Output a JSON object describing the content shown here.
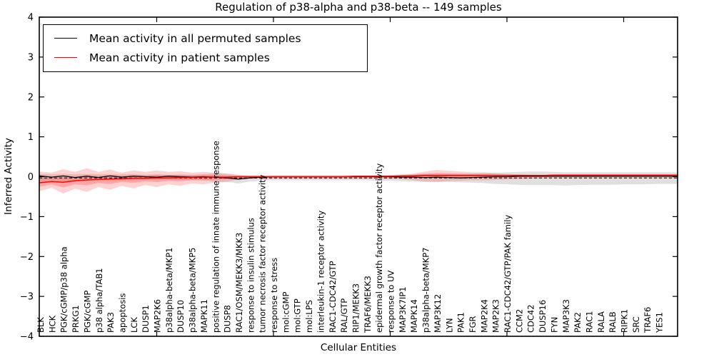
{
  "figure": {
    "title": "Regulation of p38-alpha and p38-beta -- 149 samples",
    "xlabel": "Cellular Entities",
    "ylabel": "Inferred Activity"
  },
  "legend": {
    "items": [
      {
        "label": "Mean activity in all permuted samples",
        "color": "#000000"
      },
      {
        "label": "Mean activity in patient samples",
        "color": "#ff0000"
      }
    ]
  },
  "chart_data": {
    "type": "line",
    "title": "Regulation of p38-alpha and p38-beta -- 149 samples",
    "xlabel": "Cellular Entities",
    "ylabel": "Inferred Activity",
    "ylim": [
      -4,
      4
    ],
    "yticks": [
      4,
      3,
      2,
      1,
      0,
      -1,
      -2,
      -3,
      -4
    ],
    "x_major_tick_indices": [
      10,
      20,
      30,
      40,
      50
    ],
    "grid": false,
    "legend_position": "upper left",
    "colors": {
      "permuted_line": "#000000",
      "permuted_band": "#999999",
      "patient_line": "#ff0000",
      "patient_band": "#ff3333",
      "baseline": "#000000"
    },
    "baseline": {
      "style": "dashed",
      "value": -0.03
    },
    "categories": [
      "BLK",
      "HCK",
      "PGK/cGMP/p38 alpha",
      "PRKG1",
      "PGK/cGMP",
      "p38 alpha/TAB1",
      "PAK3",
      "apoptosis",
      "LCK",
      "DUSP1",
      "MAP2K6",
      "p38alpha-beta/MKP1",
      "DUSP10",
      "p38alpha-beta/MKP5",
      "MAPK11",
      "positive regulation of innate immune response",
      "DUSP8",
      "RAC1/OSM/MEKK3/MKK3",
      "response to insulin stimulus",
      "tumor necrosis factor receptor activity",
      "response to stress",
      "mol:cGMP",
      "mol:GTP",
      "mol:LPS",
      "interleukin-1 receptor activity",
      "RAC1-CDC42/GTP",
      "RAL/GTP",
      "RIP1/MEKK3",
      "TRAF6/MEKK3",
      "epidermal growth factor receptor activity",
      "response to UV",
      "MAP3K7IP1",
      "MAPK14",
      "p38alpha-beta/MKP7",
      "MAP3K12",
      "LYN",
      "PAK1",
      "FGR",
      "MAP2K4",
      "MAP2K3",
      "RAC1-CDC42/GTP/PAK family",
      "CCM2",
      "CDC42",
      "DUSP16",
      "FYN",
      "MAP3K3",
      "PAK2",
      "RAC1",
      "RALA",
      "RALB",
      "RIPK1",
      "SRC",
      "TRAF6",
      "YES1"
    ],
    "series": [
      {
        "name": "Mean activity in all permuted samples",
        "values": [
          0.02,
          -0.01,
          0.02,
          -0.02,
          0.01,
          -0.02,
          0.02,
          -0.01,
          0.01,
          0.0,
          -0.01,
          0.01,
          0.0,
          -0.01,
          0.0,
          -0.01,
          -0.03,
          -0.06,
          -0.03,
          -0.01,
          0.0,
          0.0,
          0.0,
          0.0,
          0.0,
          0.0,
          0.0,
          0.0,
          0.0,
          0.0,
          0.0,
          -0.01,
          -0.01,
          -0.02,
          -0.01,
          -0.02,
          -0.03,
          -0.02,
          -0.01,
          0.0,
          0.0,
          0.01,
          0.01,
          0.01,
          0.01,
          0.01,
          0.01,
          0.01,
          0.01,
          0.01,
          0.01,
          0.01,
          0.01,
          0.01
        ],
        "band_upper": [
          0.07,
          0.06,
          0.07,
          0.06,
          0.07,
          0.06,
          0.06,
          0.06,
          0.06,
          0.05,
          0.05,
          0.05,
          0.05,
          0.05,
          0.06,
          0.09,
          0.07,
          0.05,
          0.04,
          0.04,
          0.04,
          0.04,
          0.04,
          0.04,
          0.04,
          0.04,
          0.04,
          0.04,
          0.04,
          0.05,
          0.05,
          0.06,
          0.06,
          0.06,
          0.06,
          0.07,
          0.07,
          0.08,
          0.09,
          0.1,
          0.11,
          0.12,
          0.13,
          0.13,
          0.12,
          0.11,
          0.11,
          0.11,
          0.11,
          0.11,
          0.11,
          0.11,
          0.11,
          0.11
        ],
        "band_lower": [
          -0.11,
          -0.09,
          -0.11,
          -0.09,
          -0.1,
          -0.09,
          -0.09,
          -0.09,
          -0.09,
          -0.08,
          -0.08,
          -0.08,
          -0.08,
          -0.08,
          -0.09,
          -0.13,
          -0.13,
          -0.17,
          -0.12,
          -0.1,
          -0.09,
          -0.09,
          -0.09,
          -0.09,
          -0.09,
          -0.09,
          -0.09,
          -0.09,
          -0.09,
          -0.1,
          -0.1,
          -0.11,
          -0.12,
          -0.13,
          -0.13,
          -0.13,
          -0.14,
          -0.15,
          -0.16,
          -0.18,
          -0.19,
          -0.2,
          -0.21,
          -0.21,
          -0.21,
          -0.22,
          -0.21,
          -0.2,
          -0.2,
          -0.2,
          -0.19,
          -0.19,
          -0.19,
          -0.18
        ]
      },
      {
        "name": "Mean activity in patient samples",
        "values": [
          -0.15,
          -0.12,
          -0.14,
          -0.1,
          -0.08,
          -0.07,
          -0.06,
          -0.05,
          -0.04,
          -0.04,
          -0.03,
          -0.03,
          -0.02,
          -0.02,
          -0.01,
          -0.01,
          -0.01,
          0.0,
          0.0,
          0.0,
          0.0,
          0.0,
          0.0,
          0.0,
          0.0,
          0.0,
          0.0,
          0.01,
          0.01,
          0.01,
          0.01,
          0.02,
          0.02,
          0.03,
          0.03,
          0.03,
          0.03,
          0.03,
          0.03,
          0.03,
          0.03,
          0.03,
          0.03,
          0.03,
          0.04,
          0.04,
          0.04,
          0.04,
          0.04,
          0.04,
          0.04,
          0.04,
          0.04,
          0.04
        ],
        "band_upper": [
          0.13,
          0.1,
          0.19,
          0.12,
          0.21,
          0.12,
          0.18,
          0.1,
          0.16,
          0.12,
          0.16,
          0.12,
          0.14,
          0.1,
          0.12,
          0.1,
          0.08,
          0.04,
          0.02,
          0.02,
          0.02,
          0.02,
          0.02,
          0.02,
          0.02,
          0.02,
          0.02,
          0.02,
          0.02,
          0.02,
          0.03,
          0.04,
          0.08,
          0.13,
          0.17,
          0.15,
          0.13,
          0.11,
          0.11,
          0.09,
          0.07,
          0.06,
          0.05,
          0.04,
          0.03,
          0.03,
          0.03,
          0.03,
          0.03,
          0.03,
          0.03,
          0.03,
          0.03,
          0.03
        ],
        "band_lower": [
          -0.36,
          -0.28,
          -0.42,
          -0.3,
          -0.38,
          -0.26,
          -0.33,
          -0.23,
          -0.29,
          -0.21,
          -0.26,
          -0.19,
          -0.23,
          -0.17,
          -0.19,
          -0.15,
          -0.13,
          -0.07,
          -0.05,
          -0.05,
          -0.05,
          -0.05,
          -0.05,
          -0.05,
          -0.05,
          -0.05,
          -0.05,
          -0.05,
          -0.05,
          -0.05,
          -0.05,
          -0.06,
          -0.09,
          -0.12,
          -0.13,
          -0.11,
          -0.1,
          -0.09,
          -0.09,
          -0.08,
          -0.07,
          -0.06,
          -0.05,
          -0.04,
          -0.03,
          -0.03,
          -0.03,
          -0.03,
          -0.03,
          -0.03,
          -0.03,
          -0.03,
          -0.03,
          -0.03
        ]
      }
    ]
  }
}
